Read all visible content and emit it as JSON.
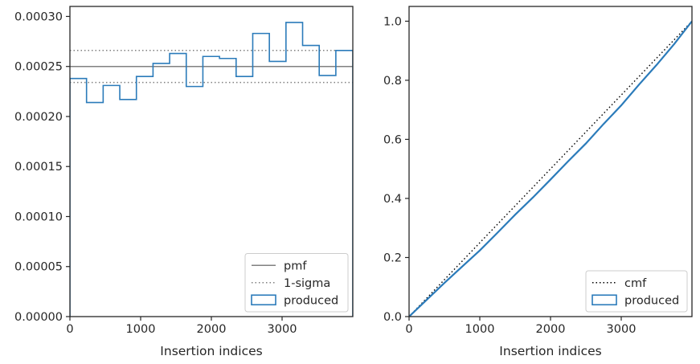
{
  "colors": {
    "produced": "#2b7bba",
    "pmf": "#808080",
    "sigma": "#808080",
    "cmf": "#000000",
    "spine": "#262626"
  },
  "chart_data": [
    {
      "type": "histogram-step",
      "xlabel": "Insertion indices",
      "ylabel": "",
      "xlim": [
        0,
        4000
      ],
      "ylim": [
        0,
        0.00031
      ],
      "x_ticks": [
        0,
        1000,
        2000,
        3000
      ],
      "x_tick_labels": [
        "0",
        "1000",
        "2000",
        "3000"
      ],
      "y_ticks": [
        0,
        5e-05,
        0.0001,
        0.00015,
        0.0002,
        0.00025,
        0.0003
      ],
      "y_tick_labels": [
        "0.00000",
        "0.00005",
        "0.00010",
        "0.00015",
        "0.00020",
        "0.00025",
        "0.00030"
      ],
      "bin_edges": [
        0,
        235,
        470,
        705,
        940,
        1175,
        1410,
        1645,
        1880,
        2115,
        2350,
        2585,
        2820,
        3055,
        3290,
        3525,
        3760,
        4000
      ],
      "series": [
        {
          "name": "produced",
          "style": "step",
          "values": [
            0.000238,
            0.000214,
            0.000231,
            0.000217,
            0.00024,
            0.000253,
            0.000263,
            0.00023,
            0.00026,
            0.000258,
            0.00024,
            0.000283,
            0.000255,
            0.000294,
            0.000271,
            0.000241,
            0.000266
          ]
        }
      ],
      "hlines": [
        {
          "name": "pmf",
          "style": "solid",
          "y": 0.00025
        },
        {
          "name": "1-sigma",
          "style": "dotted",
          "y": 0.000266
        },
        {
          "name": "1-sigma",
          "style": "dotted",
          "y": 0.000234
        }
      ],
      "legend": {
        "placement": "lower-right",
        "entries": [
          "pmf",
          "1-sigma",
          "produced"
        ]
      },
      "grid": false
    },
    {
      "type": "line",
      "xlabel": "Insertion indices",
      "ylabel": "",
      "xlim": [
        0,
        4000
      ],
      "ylim": [
        0,
        1.05
      ],
      "x_ticks": [
        0,
        1000,
        2000,
        3000
      ],
      "x_tick_labels": [
        "0",
        "1000",
        "2000",
        "3000"
      ],
      "y_ticks": [
        0,
        0.2,
        0.4,
        0.6,
        0.8,
        1.0
      ],
      "y_tick_labels": [
        "0.0",
        "0.2",
        "0.4",
        "0.6",
        "0.8",
        "1.0"
      ],
      "series": [
        {
          "name": "cmf",
          "style": "dotted",
          "x": [
            0,
            4000
          ],
          "y": [
            0,
            1.0
          ]
        },
        {
          "name": "produced",
          "style": "solid",
          "x": [
            0,
            250,
            500,
            750,
            1000,
            1250,
            1500,
            1750,
            2000,
            2250,
            2500,
            2750,
            3000,
            3250,
            3500,
            3750,
            4000
          ],
          "y": [
            0,
            0.057,
            0.114,
            0.169,
            0.224,
            0.284,
            0.345,
            0.403,
            0.464,
            0.526,
            0.586,
            0.652,
            0.715,
            0.785,
            0.852,
            0.923,
            1.0
          ]
        }
      ],
      "legend": {
        "placement": "lower-right",
        "entries": [
          "cmf",
          "produced"
        ]
      },
      "grid": false
    }
  ]
}
